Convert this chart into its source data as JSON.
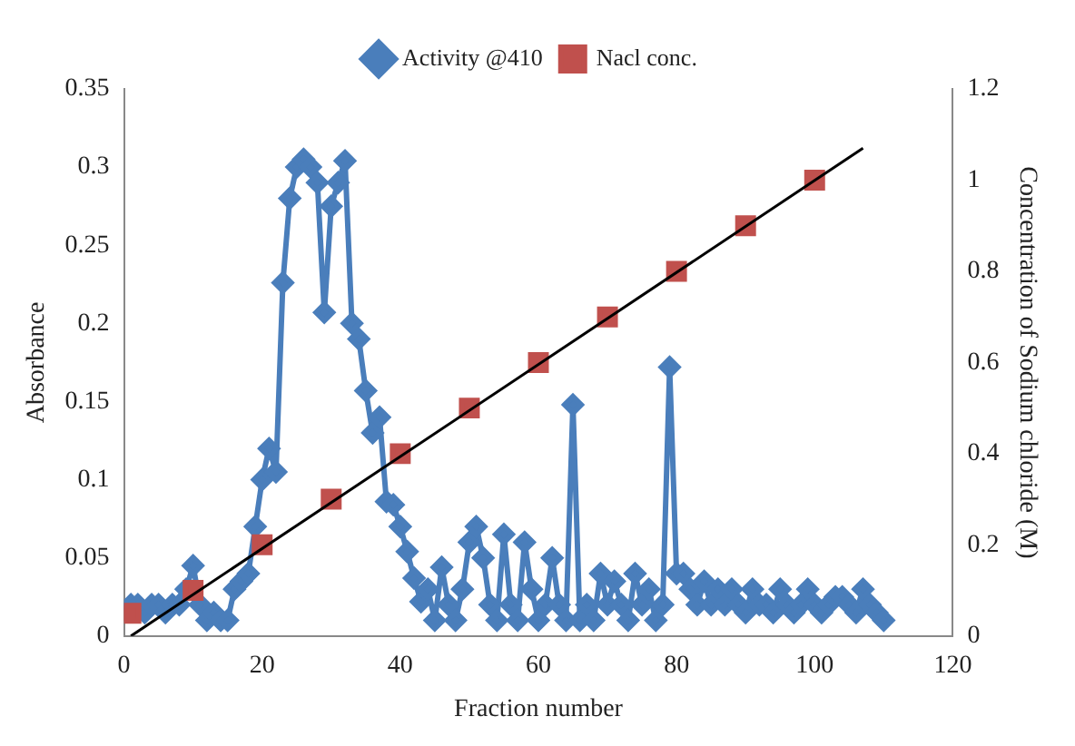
{
  "chart_data": {
    "type": "line",
    "xlabel": "Fraction number",
    "ylabel": "Absorbance",
    "y2label": "Concentration of Sodium chloride (M)",
    "xlim": [
      0,
      120
    ],
    "xticks": [
      0,
      20,
      40,
      60,
      80,
      100,
      120
    ],
    "ylim": [
      0,
      0.35
    ],
    "yticks": [
      0,
      0.05,
      0.1,
      0.15,
      0.2,
      0.25,
      0.3,
      0.35
    ],
    "y2lim": [
      0,
      1.2
    ],
    "y2ticks": [
      0,
      0.2,
      0.4,
      0.6,
      0.8,
      1,
      1.2
    ],
    "grid": false,
    "legend": "top",
    "series": [
      {
        "name": "Activity @410",
        "type": "line",
        "marker": "diamond",
        "color": "#4a7ebb",
        "x": [
          1,
          2,
          3,
          4,
          5,
          6,
          7,
          8,
          9,
          10,
          11,
          12,
          13,
          14,
          15,
          16,
          17,
          18,
          19,
          20,
          21,
          22,
          23,
          24,
          25,
          26,
          27,
          28,
          29,
          30,
          31,
          32,
          33,
          34,
          35,
          36,
          37,
          38,
          39,
          40,
          41,
          42,
          43,
          44,
          45,
          46,
          47,
          48,
          49,
          50,
          51,
          52,
          53,
          54,
          55,
          56,
          57,
          58,
          59,
          60,
          61,
          62,
          63,
          64,
          65,
          66,
          67,
          68,
          69,
          70,
          71,
          72,
          73,
          74,
          75,
          76,
          77,
          78,
          79,
          80,
          81,
          82,
          83,
          84,
          85,
          86,
          87,
          88,
          89,
          90,
          91,
          92,
          93,
          94,
          95,
          96,
          97,
          98,
          99,
          100,
          101,
          102,
          103,
          104,
          105,
          106,
          107,
          108,
          109,
          110
        ],
        "values": [
          0.02,
          0.02,
          0.015,
          0.02,
          0.02,
          0.015,
          0.02,
          0.02,
          0.03,
          0.045,
          0.02,
          0.01,
          0.015,
          0.01,
          0.01,
          0.03,
          0.035,
          0.04,
          0.07,
          0.1,
          0.12,
          0.105,
          0.226,
          0.28,
          0.3,
          0.305,
          0.3,
          0.29,
          0.207,
          0.275,
          0.29,
          0.304,
          0.2,
          0.19,
          0.157,
          0.13,
          0.14,
          0.086,
          0.084,
          0.07,
          0.054,
          0.037,
          0.022,
          0.03,
          0.01,
          0.044,
          0.02,
          0.01,
          0.03,
          0.06,
          0.07,
          0.05,
          0.02,
          0.01,
          0.065,
          0.02,
          0.01,
          0.06,
          0.03,
          0.01,
          0.02,
          0.05,
          0.02,
          0.01,
          0.148,
          0.01,
          0.02,
          0.01,
          0.04,
          0.02,
          0.035,
          0.02,
          0.01,
          0.04,
          0.02,
          0.03,
          0.01,
          0.02,
          0.172,
          0.04,
          0.04,
          0.03,
          0.02,
          0.035,
          0.02,
          0.03,
          0.02,
          0.03,
          0.02,
          0.015,
          0.03,
          0.02,
          0.02,
          0.015,
          0.03,
          0.02,
          0.015,
          0.02,
          0.03,
          0.02,
          0.015,
          0.02,
          0.025,
          0.025,
          0.02,
          0.015,
          0.03,
          0.02,
          0.015,
          0.01
        ]
      },
      {
        "name": "Nacl conc.",
        "type": "scatter",
        "marker": "square",
        "color": "#c0504d",
        "axis": "y2",
        "x": [
          1,
          10,
          20,
          30,
          40,
          50,
          60,
          70,
          80,
          90,
          100
        ],
        "values": [
          0.05,
          0.1,
          0.2,
          0.3,
          0.4,
          0.5,
          0.6,
          0.7,
          0.8,
          0.9,
          1.0
        ]
      },
      {
        "type": "line",
        "marker": "none",
        "color": "#000000",
        "axis": "y2",
        "x": [
          1,
          107
        ],
        "values": [
          0.0,
          1.07
        ]
      }
    ]
  }
}
